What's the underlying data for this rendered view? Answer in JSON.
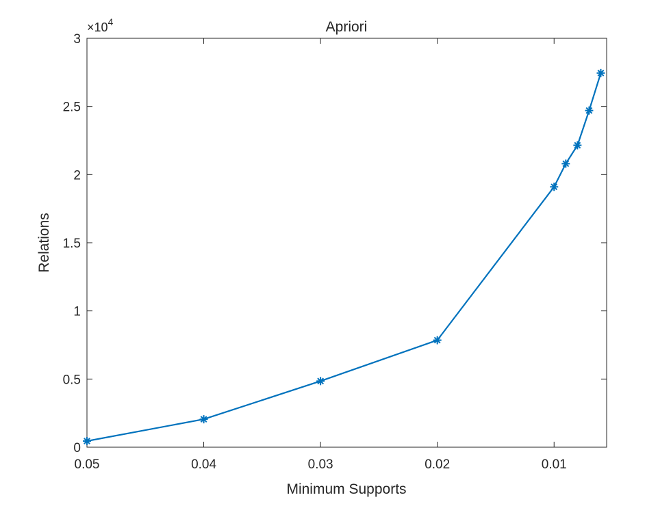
{
  "chart_data": {
    "type": "line",
    "title": "Apriori",
    "xlabel": "Minimum Supports",
    "ylabel": "Relations",
    "xlim": [
      0.05,
      0.0055
    ],
    "x_reversed": true,
    "ylim": [
      0,
      30000
    ],
    "y_exponent_label": "×10",
    "y_exponent": "4",
    "xticks": [
      0.05,
      0.04,
      0.03,
      0.02,
      0.01
    ],
    "xtick_labels": [
      "0.05",
      "0.04",
      "0.03",
      "0.02",
      "0.01"
    ],
    "yticks": [
      0,
      5000,
      10000,
      15000,
      20000,
      25000,
      30000
    ],
    "ytick_labels": [
      "0",
      "0.5",
      "1",
      "1.5",
      "2",
      "2.5",
      "3"
    ],
    "grid": false,
    "series": [
      {
        "marker": "asterisk",
        "color": "#0072BD",
        "x": [
          0.05,
          0.04,
          0.03,
          0.02,
          0.01,
          0.009,
          0.008,
          0.007,
          0.006
        ],
        "y": [
          450,
          2050,
          4850,
          7850,
          19100,
          20800,
          22150,
          24700,
          27450
        ]
      }
    ]
  }
}
